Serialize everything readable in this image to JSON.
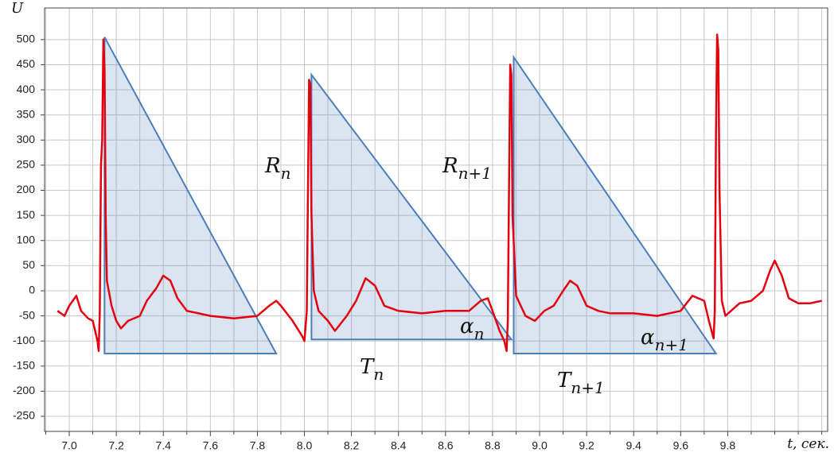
{
  "chart_data": {
    "type": "line",
    "ylabel": "U",
    "xlabel": "t, сек.",
    "xlim": [
      6.895,
      10.225
    ],
    "ylim": [
      -280,
      563
    ],
    "xticks": [
      {
        "value": 7.0,
        "label": "7.0"
      },
      7.2,
      7.4,
      7.6,
      7.8,
      {
        "value": 8.0,
        "label": "8.0"
      },
      8.2,
      8.4,
      8.6,
      8.8,
      {
        "value": 9.0,
        "label": "9.0"
      },
      9.2,
      9.4,
      9.6,
      9.8
    ],
    "x_minor_ticks": [
      6.9,
      7.1,
      7.3,
      7.5,
      7.7,
      7.9,
      8.1,
      8.3,
      8.5,
      8.7,
      8.9,
      9.1,
      9.3,
      9.5,
      9.7,
      9.9,
      10.0,
      10.1,
      10.2
    ],
    "yticks": [
      -250,
      -200,
      -150,
      -100,
      -50,
      0,
      50,
      100,
      150,
      200,
      250,
      300,
      350,
      400,
      450,
      500
    ],
    "grid": true,
    "series": [
      {
        "color": "#e3000f",
        "x": [
          6.95,
          6.98,
          7.0,
          7.03,
          7.05,
          7.08,
          7.1,
          7.12,
          7.125,
          7.13,
          7.135,
          7.14,
          7.145,
          7.15,
          7.155,
          7.16,
          7.18,
          7.2,
          7.22,
          7.25,
          7.3,
          7.33,
          7.37,
          7.4,
          7.43,
          7.46,
          7.5,
          7.55,
          7.6,
          7.7,
          7.8,
          7.85,
          7.88,
          7.9,
          7.95,
          7.99,
          8.0,
          8.01,
          8.015,
          8.02,
          8.025,
          8.03,
          8.04,
          8.06,
          8.1,
          8.13,
          8.18,
          8.22,
          8.26,
          8.3,
          8.34,
          8.4,
          8.5,
          8.6,
          8.7,
          8.75,
          8.78,
          8.8,
          8.83,
          8.85,
          8.86,
          8.865,
          8.87,
          8.875,
          8.88,
          8.885,
          8.9,
          8.94,
          8.98,
          9.02,
          9.06,
          9.1,
          9.13,
          9.16,
          9.2,
          9.25,
          9.3,
          9.4,
          9.5,
          9.6,
          9.65,
          9.7,
          9.72,
          9.74,
          9.745,
          9.75,
          9.755,
          9.76,
          9.765,
          9.775,
          9.79,
          9.85,
          9.9,
          9.95,
          9.98,
          10.0,
          10.03,
          10.06,
          10.1,
          10.15,
          10.2
        ],
        "y": [
          -40,
          -50,
          -30,
          -10,
          -40,
          -55,
          -60,
          -100,
          -120,
          -40,
          250,
          300,
          500,
          440,
          150,
          20,
          -30,
          -60,
          -75,
          -60,
          -50,
          -20,
          5,
          30,
          20,
          -15,
          -40,
          -45,
          -50,
          -55,
          -50,
          -30,
          -20,
          -30,
          -60,
          -90,
          -100,
          -40,
          200,
          420,
          410,
          150,
          0,
          -40,
          -60,
          -80,
          -50,
          -20,
          25,
          10,
          -30,
          -40,
          -45,
          -40,
          -40,
          -20,
          -15,
          -40,
          -80,
          -100,
          -120,
          -60,
          200,
          450,
          430,
          150,
          -10,
          -50,
          -60,
          -40,
          -30,
          0,
          20,
          10,
          -30,
          -40,
          -45,
          -45,
          -50,
          -40,
          -10,
          -20,
          -60,
          -95,
          -40,
          300,
          510,
          480,
          200,
          -20,
          -50,
          -25,
          -20,
          0,
          40,
          60,
          30,
          -15,
          -25,
          -25,
          -20
        ]
      }
    ],
    "triangles": [
      {
        "x": [
          7.15,
          7.15,
          7.88
        ],
        "y": [
          505,
          -125,
          -125
        ]
      },
      {
        "x": [
          8.03,
          8.03,
          8.88
        ],
        "y": [
          430,
          -97,
          -97
        ]
      },
      {
        "x": [
          8.89,
          8.89,
          9.75
        ],
        "y": [
          465,
          -125,
          -125
        ]
      }
    ],
    "triangle_color": "#4a7ebb",
    "annotations": [
      {
        "base": "R",
        "sub": "n"
      },
      {
        "base": "R",
        "sub": "n+1"
      },
      {
        "base": "T",
        "sub": "n"
      },
      {
        "base": "T",
        "sub": "n+1"
      },
      {
        "base": "α",
        "sub": "n"
      },
      {
        "base": "α",
        "sub": "n+1"
      }
    ]
  }
}
